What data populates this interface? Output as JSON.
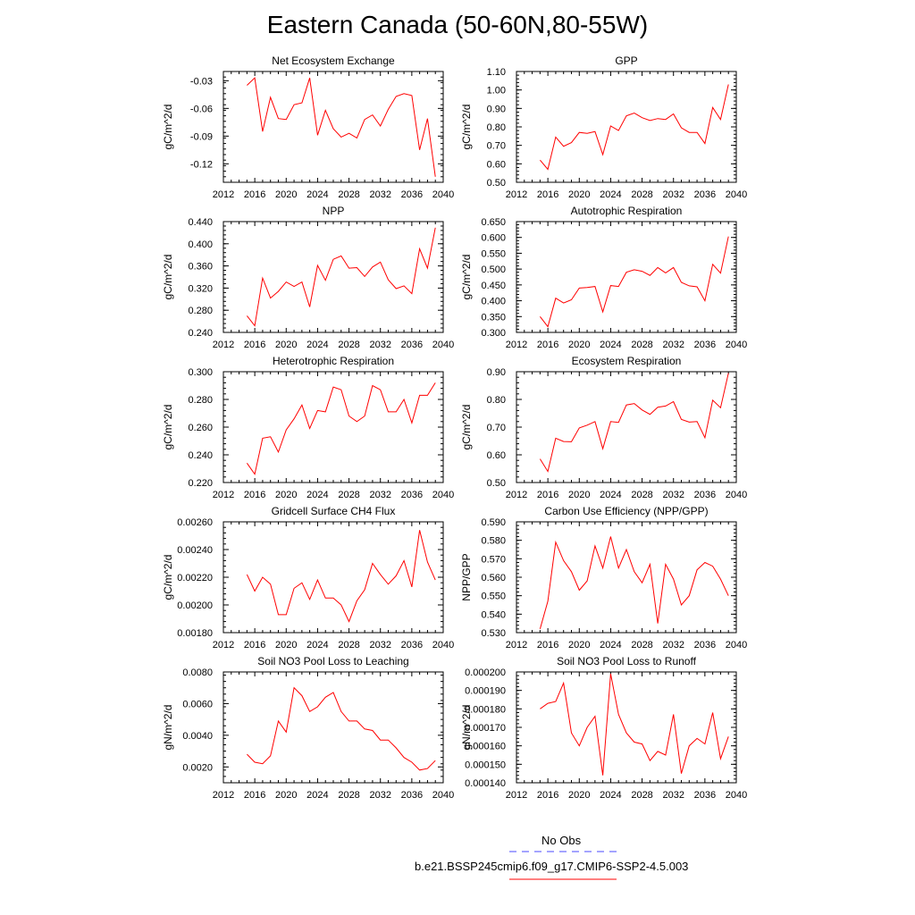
{
  "page": {
    "title": "Eastern Canada (50-60N,80-55W)",
    "obs_label": "No Obs",
    "model_label": "b.e21.BSSP245cmip6.f09_g17.CMIP6-SSP2-4.5.003"
  },
  "colors": {
    "model": "#ff0000",
    "obs": "#4a4aff"
  },
  "chart_data": [
    {
      "type": "line",
      "title": "Net Ecosystem Exchange",
      "ylabel": "gC/m^2/d",
      "xlim": [
        2012,
        2040
      ],
      "ylim": [
        -0.14,
        -0.02
      ],
      "xticks": [
        2012,
        2016,
        2020,
        2024,
        2028,
        2032,
        2036,
        2040
      ],
      "yticks": [
        -0.12,
        -0.09,
        -0.06,
        -0.03
      ],
      "ytick_labels": [
        "-0.12",
        "-0.09",
        "-0.06",
        "-0.03"
      ],
      "series": [
        {
          "x": [
            2015,
            2016,
            2017,
            2018,
            2019,
            2020,
            2021,
            2022,
            2023,
            2024,
            2025,
            2026,
            2027,
            2028,
            2029,
            2030,
            2031,
            2032,
            2033,
            2034,
            2035,
            2036,
            2037,
            2038,
            2039
          ],
          "values": [
            -0.035,
            -0.027,
            -0.085,
            -0.048,
            -0.071,
            -0.072,
            -0.056,
            -0.054,
            -0.027,
            -0.089,
            -0.062,
            -0.082,
            -0.091,
            -0.087,
            -0.092,
            -0.072,
            -0.067,
            -0.079,
            -0.061,
            -0.047,
            -0.044,
            -0.046,
            -0.105,
            -0.071,
            -0.134
          ]
        }
      ]
    },
    {
      "type": "line",
      "title": "GPP",
      "ylabel": "gC/m^2/d",
      "xlim": [
        2012,
        2040
      ],
      "ylim": [
        0.5,
        1.1
      ],
      "xticks": [
        2012,
        2016,
        2020,
        2024,
        2028,
        2032,
        2036,
        2040
      ],
      "yticks": [
        0.5,
        0.6,
        0.7,
        0.8,
        0.9,
        1.0,
        1.1
      ],
      "ytick_labels": [
        "0.50",
        "0.60",
        "0.70",
        "0.80",
        "0.90",
        "1.00",
        "1.10"
      ],
      "series": [
        {
          "x": [
            2015,
            2016,
            2017,
            2018,
            2019,
            2020,
            2021,
            2022,
            2023,
            2024,
            2025,
            2026,
            2027,
            2028,
            2029,
            2030,
            2031,
            2032,
            2033,
            2034,
            2035,
            2036,
            2037,
            2038,
            2039
          ],
          "values": [
            0.62,
            0.57,
            0.745,
            0.695,
            0.715,
            0.77,
            0.765,
            0.775,
            0.65,
            0.805,
            0.78,
            0.86,
            0.875,
            0.85,
            0.835,
            0.845,
            0.84,
            0.87,
            0.795,
            0.77,
            0.77,
            0.71,
            0.905,
            0.84,
            1.03
          ]
        }
      ]
    },
    {
      "type": "line",
      "title": "NPP",
      "ylabel": "gC/m^2/d",
      "xlim": [
        2012,
        2040
      ],
      "ylim": [
        0.24,
        0.44
      ],
      "xticks": [
        2012,
        2016,
        2020,
        2024,
        2028,
        2032,
        2036,
        2040
      ],
      "yticks": [
        0.24,
        0.28,
        0.32,
        0.36,
        0.4,
        0.44
      ],
      "ytick_labels": [
        "0.240",
        "0.280",
        "0.320",
        "0.360",
        "0.400",
        "0.440"
      ],
      "series": [
        {
          "x": [
            2015,
            2016,
            2017,
            2018,
            2019,
            2020,
            2021,
            2022,
            2023,
            2024,
            2025,
            2026,
            2027,
            2028,
            2029,
            2030,
            2031,
            2032,
            2033,
            2034,
            2035,
            2036,
            2037,
            2038,
            2039
          ],
          "values": [
            0.27,
            0.252,
            0.338,
            0.302,
            0.314,
            0.331,
            0.323,
            0.331,
            0.286,
            0.361,
            0.334,
            0.372,
            0.378,
            0.356,
            0.357,
            0.341,
            0.358,
            0.367,
            0.335,
            0.319,
            0.324,
            0.31,
            0.391,
            0.356,
            0.429
          ]
        }
      ]
    },
    {
      "type": "line",
      "title": "Autotrophic Respiration",
      "ylabel": "gC/m^2/d",
      "xlim": [
        2012,
        2040
      ],
      "ylim": [
        0.3,
        0.65
      ],
      "xticks": [
        2012,
        2016,
        2020,
        2024,
        2028,
        2032,
        2036,
        2040
      ],
      "yticks": [
        0.3,
        0.35,
        0.4,
        0.45,
        0.5,
        0.55,
        0.6,
        0.65
      ],
      "ytick_labels": [
        "0.300",
        "0.350",
        "0.400",
        "0.450",
        "0.500",
        "0.550",
        "0.600",
        "0.650"
      ],
      "series": [
        {
          "x": [
            2015,
            2016,
            2017,
            2018,
            2019,
            2020,
            2021,
            2022,
            2023,
            2024,
            2025,
            2026,
            2027,
            2028,
            2029,
            2030,
            2031,
            2032,
            2033,
            2034,
            2035,
            2036,
            2037,
            2038,
            2039
          ],
          "values": [
            0.35,
            0.318,
            0.408,
            0.393,
            0.403,
            0.44,
            0.442,
            0.445,
            0.365,
            0.448,
            0.445,
            0.49,
            0.498,
            0.493,
            0.48,
            0.505,
            0.488,
            0.505,
            0.458,
            0.447,
            0.444,
            0.4,
            0.515,
            0.487,
            0.603
          ]
        }
      ]
    },
    {
      "type": "line",
      "title": "Heterotrophic Respiration",
      "ylabel": "gC/m^2/d",
      "xlim": [
        2012,
        2040
      ],
      "ylim": [
        0.22,
        0.3
      ],
      "xticks": [
        2012,
        2016,
        2020,
        2024,
        2028,
        2032,
        2036,
        2040
      ],
      "yticks": [
        0.22,
        0.24,
        0.26,
        0.28,
        0.3
      ],
      "ytick_labels": [
        "0.220",
        "0.240",
        "0.260",
        "0.280",
        "0.300"
      ],
      "series": [
        {
          "x": [
            2015,
            2016,
            2017,
            2018,
            2019,
            2020,
            2021,
            2022,
            2023,
            2024,
            2025,
            2026,
            2027,
            2028,
            2029,
            2030,
            2031,
            2032,
            2033,
            2034,
            2035,
            2036,
            2037,
            2038,
            2039
          ],
          "values": [
            0.234,
            0.226,
            0.252,
            0.253,
            0.242,
            0.258,
            0.266,
            0.276,
            0.259,
            0.272,
            0.271,
            0.289,
            0.287,
            0.268,
            0.264,
            0.268,
            0.29,
            0.287,
            0.271,
            0.271,
            0.28,
            0.263,
            0.283,
            0.283,
            0.292
          ]
        }
      ]
    },
    {
      "type": "line",
      "title": "Ecosystem Respiration",
      "ylabel": "gC/m^2/d",
      "xlim": [
        2012,
        2040
      ],
      "ylim": [
        0.5,
        0.9
      ],
      "xticks": [
        2012,
        2016,
        2020,
        2024,
        2028,
        2032,
        2036,
        2040
      ],
      "yticks": [
        0.5,
        0.6,
        0.7,
        0.8,
        0.9
      ],
      "ytick_labels": [
        "0.50",
        "0.60",
        "0.70",
        "0.80",
        "0.90"
      ],
      "series": [
        {
          "x": [
            2015,
            2016,
            2017,
            2018,
            2019,
            2020,
            2021,
            2022,
            2023,
            2024,
            2025,
            2026,
            2027,
            2028,
            2029,
            2030,
            2031,
            2032,
            2033,
            2034,
            2035,
            2036,
            2037,
            2038,
            2039
          ],
          "values": [
            0.585,
            0.54,
            0.66,
            0.648,
            0.647,
            0.697,
            0.707,
            0.72,
            0.622,
            0.72,
            0.717,
            0.78,
            0.785,
            0.762,
            0.746,
            0.772,
            0.776,
            0.792,
            0.728,
            0.718,
            0.72,
            0.662,
            0.797,
            0.77,
            0.895
          ]
        }
      ]
    },
    {
      "type": "line",
      "title": "Gridcell Surface CH4 Flux",
      "ylabel": "gC/m^2/d",
      "xlim": [
        2012,
        2040
      ],
      "ylim": [
        0.0018,
        0.0026
      ],
      "xticks": [
        2012,
        2016,
        2020,
        2024,
        2028,
        2032,
        2036,
        2040
      ],
      "yticks": [
        0.0018,
        0.002,
        0.0022,
        0.0024,
        0.0026
      ],
      "ytick_labels": [
        "0.00180",
        "0.00200",
        "0.00220",
        "0.00240",
        "0.00260"
      ],
      "series": [
        {
          "x": [
            2015,
            2016,
            2017,
            2018,
            2019,
            2020,
            2021,
            2022,
            2023,
            2024,
            2025,
            2026,
            2027,
            2028,
            2029,
            2030,
            2031,
            2032,
            2033,
            2034,
            2035,
            2036,
            2037,
            2038,
            2039
          ],
          "values": [
            0.00222,
            0.0021,
            0.0022,
            0.00215,
            0.00193,
            0.00193,
            0.00212,
            0.00216,
            0.00204,
            0.00218,
            0.00205,
            0.00205,
            0.002,
            0.00188,
            0.00203,
            0.00211,
            0.0023,
            0.00222,
            0.00215,
            0.00221,
            0.00232,
            0.00213,
            0.00254,
            0.00231,
            0.00218
          ]
        }
      ]
    },
    {
      "type": "line",
      "title": "Carbon Use Efficiency (NPP/GPP)",
      "ylabel": "NPP/GPP",
      "xlim": [
        2012,
        2040
      ],
      "ylim": [
        0.53,
        0.59
      ],
      "xticks": [
        2012,
        2016,
        2020,
        2024,
        2028,
        2032,
        2036,
        2040
      ],
      "yticks": [
        0.53,
        0.54,
        0.55,
        0.56,
        0.57,
        0.58,
        0.59
      ],
      "ytick_labels": [
        "0.530",
        "0.540",
        "0.550",
        "0.560",
        "0.570",
        "0.580",
        "0.590"
      ],
      "series": [
        {
          "x": [
            2015,
            2016,
            2017,
            2018,
            2019,
            2020,
            2021,
            2022,
            2023,
            2024,
            2025,
            2026,
            2027,
            2028,
            2029,
            2030,
            2031,
            2032,
            2033,
            2034,
            2035,
            2036,
            2037,
            2038,
            2039
          ],
          "values": [
            0.532,
            0.547,
            0.579,
            0.569,
            0.563,
            0.553,
            0.558,
            0.577,
            0.565,
            0.582,
            0.565,
            0.575,
            0.563,
            0.557,
            0.567,
            0.535,
            0.567,
            0.559,
            0.545,
            0.55,
            0.564,
            0.568,
            0.566,
            0.559,
            0.55
          ]
        }
      ]
    },
    {
      "type": "line",
      "title": "Soil NO3 Pool Loss to Leaching",
      "ylabel": "gN/m^2/d",
      "xlim": [
        2012,
        2040
      ],
      "ylim": [
        0.001,
        0.008
      ],
      "xticks": [
        2012,
        2016,
        2020,
        2024,
        2028,
        2032,
        2036,
        2040
      ],
      "yticks": [
        0.002,
        0.004,
        0.006,
        0.008
      ],
      "ytick_labels": [
        "0.0020",
        "0.0040",
        "0.0060",
        "0.0080"
      ],
      "series": [
        {
          "x": [
            2015,
            2016,
            2017,
            2018,
            2019,
            2020,
            2021,
            2022,
            2023,
            2024,
            2025,
            2026,
            2027,
            2028,
            2029,
            2030,
            2031,
            2032,
            2033,
            2034,
            2035,
            2036,
            2037,
            2038,
            2039
          ],
          "values": [
            0.0028,
            0.0023,
            0.0022,
            0.0027,
            0.0049,
            0.0042,
            0.007,
            0.0065,
            0.0055,
            0.0058,
            0.0064,
            0.0067,
            0.0055,
            0.0049,
            0.0049,
            0.0044,
            0.0043,
            0.0037,
            0.0037,
            0.0032,
            0.0026,
            0.0023,
            0.0018,
            0.0019,
            0.0024
          ]
        }
      ]
    },
    {
      "type": "line",
      "title": "Soil NO3 Pool Loss to Runoff",
      "ylabel": "gN/m^2/d",
      "xlim": [
        2012,
        2040
      ],
      "ylim": [
        0.00014,
        0.0002
      ],
      "xticks": [
        2012,
        2016,
        2020,
        2024,
        2028,
        2032,
        2036,
        2040
      ],
      "yticks": [
        0.00014,
        0.00015,
        0.00016,
        0.00017,
        0.00018,
        0.00019,
        0.0002
      ],
      "ytick_labels": [
        "0.000140",
        "0.000150",
        "0.000160",
        "0.000170",
        "0.000180",
        "0.000190",
        "0.000200"
      ],
      "series": [
        {
          "x": [
            2015,
            2016,
            2017,
            2018,
            2019,
            2020,
            2021,
            2022,
            2023,
            2024,
            2025,
            2026,
            2027,
            2028,
            2029,
            2030,
            2031,
            2032,
            2033,
            2034,
            2035,
            2036,
            2037,
            2038,
            2039
          ],
          "values": [
            0.00018,
            0.000183,
            0.000184,
            0.000194,
            0.000167,
            0.00016,
            0.00017,
            0.000176,
            0.000144,
            0.000199,
            0.000177,
            0.000167,
            0.000162,
            0.000161,
            0.000152,
            0.000157,
            0.000155,
            0.000177,
            0.000145,
            0.00016,
            0.000164,
            0.000161,
            0.000178,
            0.000153,
            0.000165
          ]
        }
      ]
    }
  ]
}
